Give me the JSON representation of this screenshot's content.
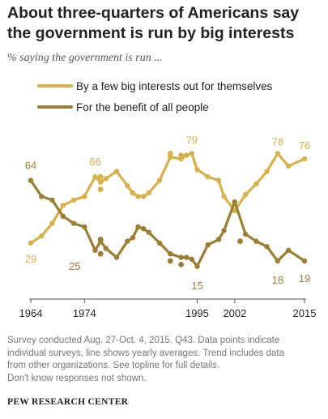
{
  "header": {
    "title": "About three-quarters of Americans say the government is run by big interests",
    "subtitle": "% saying the government is run ..."
  },
  "chart_data": {
    "type": "line",
    "title": "About three-quarters of Americans say the government is run by big interests",
    "subtitle": "% saying the government is run ...",
    "xlabel": "",
    "ylabel": "",
    "xlim": [
      1964,
      2015
    ],
    "ylim": [
      0,
      100
    ],
    "x_ticks": [
      1964,
      1974,
      1995,
      2002,
      2015
    ],
    "grid": false,
    "legend": "top-left",
    "series": [
      {
        "name": "By a few big interests out for themselves",
        "color": "#d8b14a",
        "line": [
          [
            1964,
            29
          ],
          [
            1966,
            33
          ],
          [
            1968,
            40
          ],
          [
            1970,
            50
          ],
          [
            1972,
            53
          ],
          [
            1974,
            55
          ],
          [
            1976,
            66
          ],
          [
            1977,
            63
          ],
          [
            1978,
            65
          ],
          [
            1980,
            69
          ],
          [
            1982,
            61
          ],
          [
            1983,
            57
          ],
          [
            1984,
            55
          ],
          [
            1985,
            55
          ],
          [
            1986,
            57
          ],
          [
            1988,
            64
          ],
          [
            1990,
            77
          ],
          [
            1992,
            76
          ],
          [
            1993,
            78
          ],
          [
            1994,
            79
          ],
          [
            1995,
            70
          ],
          [
            1997,
            66
          ],
          [
            1999,
            64
          ],
          [
            2000,
            55
          ],
          [
            2002,
            47
          ],
          [
            2004,
            56
          ],
          [
            2006,
            62
          ],
          [
            2008,
            69
          ],
          [
            2010,
            79
          ],
          [
            2012,
            72
          ],
          [
            2015,
            76
          ]
        ],
        "points": [
          [
            1977,
            66
          ],
          [
            1977,
            59
          ],
          [
            1990,
            79
          ],
          [
            1992,
            78
          ]
        ],
        "labels": [
          {
            "x": 1964,
            "y": 29,
            "text": "29"
          },
          {
            "x": 1976,
            "y": 66,
            "text": "66"
          },
          {
            "x": 1994,
            "y": 79,
            "text": "79"
          },
          {
            "x": 2010,
            "y": 78,
            "text": "78"
          },
          {
            "x": 2015,
            "y": 76,
            "text": "76"
          }
        ]
      },
      {
        "name": "For the benefit of all people",
        "color": "#9c7e32",
        "line": [
          [
            1964,
            64
          ],
          [
            1966,
            55
          ],
          [
            1968,
            53
          ],
          [
            1970,
            44
          ],
          [
            1972,
            40
          ],
          [
            1974,
            38
          ],
          [
            1976,
            25
          ],
          [
            1977,
            30
          ],
          [
            1978,
            26
          ],
          [
            1980,
            21
          ],
          [
            1982,
            30
          ],
          [
            1983,
            32
          ],
          [
            1984,
            38
          ],
          [
            1985,
            37
          ],
          [
            1986,
            35
          ],
          [
            1988,
            29
          ],
          [
            1990,
            23
          ],
          [
            1992,
            21
          ],
          [
            1993,
            21
          ],
          [
            1994,
            20
          ],
          [
            1995,
            16
          ],
          [
            1997,
            28
          ],
          [
            1999,
            31
          ],
          [
            2000,
            36
          ],
          [
            2002,
            52
          ],
          [
            2004,
            34
          ],
          [
            2006,
            30
          ],
          [
            2008,
            27
          ],
          [
            2010,
            19
          ],
          [
            2012,
            25
          ],
          [
            2015,
            19
          ]
        ],
        "points": [
          [
            1977,
            31
          ],
          [
            1977,
            23
          ],
          [
            1990,
            19
          ],
          [
            1992,
            17
          ],
          [
            2003,
            30
          ]
        ],
        "labels": [
          {
            "x": 1964,
            "y": 64,
            "text": "64"
          },
          {
            "x": 1974,
            "y": 25,
            "text": "25"
          },
          {
            "x": 1995,
            "y": 15,
            "text": "15"
          },
          {
            "x": 2010,
            "y": 18,
            "text": "18"
          },
          {
            "x": 2015,
            "y": 19,
            "text": "19"
          }
        ]
      }
    ]
  },
  "footer": {
    "note_lines": [
      "Survey conducted Aug. 27-Oct. 4, 2015. Q43. Data points indicate",
      "individual surveys, line shows yearly averages. Trend includes data",
      "from other organizations. See topline for full details.",
      "Don't know responses not shown."
    ],
    "source": "PEW RESEARCH CENTER"
  }
}
